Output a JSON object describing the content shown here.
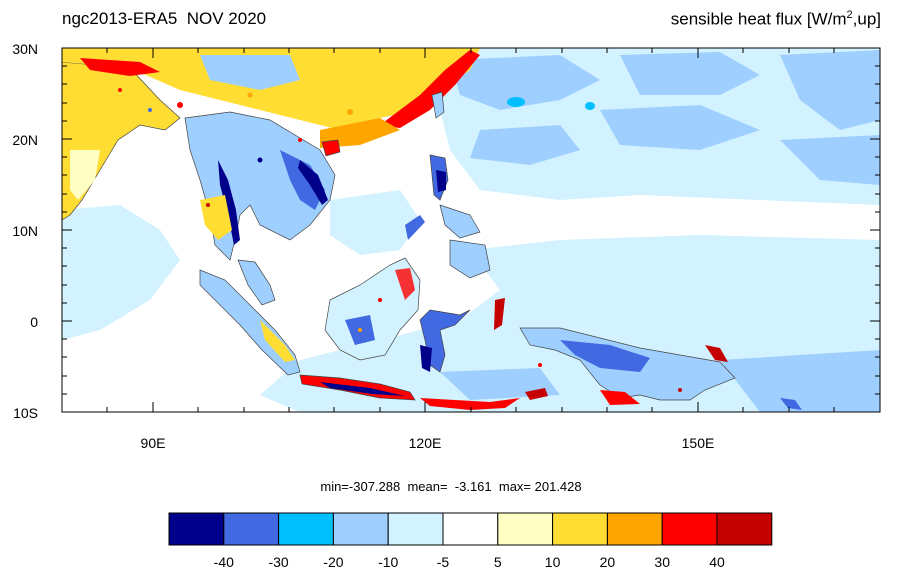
{
  "header": {
    "title_left": "ngc2013-ERA5  NOV 2020",
    "title_right_pre": "sensible heat flux [W/m",
    "title_right_sup": "2",
    "title_right_post": ",up]"
  },
  "map": {
    "lat_labels": [
      "30N",
      "20N",
      "10N",
      "0",
      "10S"
    ],
    "lon_labels": [
      "90E",
      "120E",
      "150E"
    ]
  },
  "stats": {
    "text": "min=-307.288  mean=  -3.161  max= 201.428"
  },
  "colorbar": {
    "colors": [
      "#00008b",
      "#4169e1",
      "#00bfff",
      "#9fcfff",
      "#d2f2ff",
      "#ffffff",
      "#ffffc4",
      "#ffdd33",
      "#ffa500",
      "#ff0000",
      "#c40000"
    ],
    "labels": [
      "-40",
      "-30",
      "-20",
      "-10",
      "-5",
      "5",
      "10",
      "20",
      "30",
      "40"
    ]
  },
  "palette": {
    "ocean_light": "#d2f2ff",
    "ocean_mid": "#9fcfff",
    "land_warm": "#ffdd33",
    "land_hot": "#ff0000",
    "land_cold": "#4169e1"
  }
}
